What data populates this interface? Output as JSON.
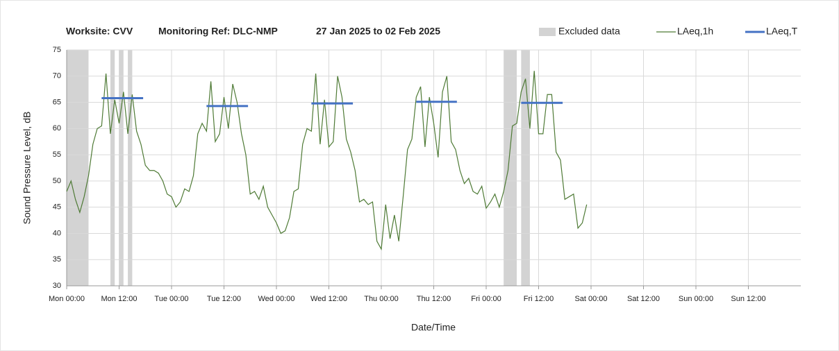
{
  "chart_data": {
    "type": "line",
    "title": [
      "Worksite: CVV",
      "Monitoring Ref: DLC-NMP",
      "27 Jan 2025 to 02 Feb 2025"
    ],
    "xlabel": "Date/Time",
    "ylabel": "Sound Pressure Level, dB",
    "xlim": [
      0,
      168
    ],
    "xticks": [
      {
        "value": 0,
        "label": "Mon 00:00"
      },
      {
        "value": 12,
        "label": "Mon 12:00"
      },
      {
        "value": 24,
        "label": "Tue 00:00"
      },
      {
        "value": 36,
        "label": "Tue 12:00"
      },
      {
        "value": 48,
        "label": "Wed 00:00"
      },
      {
        "value": 60,
        "label": "Wed 12:00"
      },
      {
        "value": 72,
        "label": "Thu 00:00"
      },
      {
        "value": 84,
        "label": "Thu 12:00"
      },
      {
        "value": 96,
        "label": "Fri 00:00"
      },
      {
        "value": 108,
        "label": "Fri 12:00"
      },
      {
        "value": 120,
        "label": "Sat 00:00"
      },
      {
        "value": 132,
        "label": "Sat 12:00"
      },
      {
        "value": 144,
        "label": "Sun 00:00"
      },
      {
        "value": 156,
        "label": "Sun 12:00"
      }
    ],
    "ylim": [
      30,
      75
    ],
    "yticks": [
      30,
      35,
      40,
      45,
      50,
      55,
      60,
      65,
      70,
      75
    ],
    "grid": true,
    "excluded": {
      "name": "Excluded data",
      "color": "#d3d3d3",
      "ranges": [
        [
          0,
          5
        ],
        [
          10,
          11
        ],
        [
          12,
          13
        ],
        [
          14,
          15
        ],
        [
          100,
          103
        ],
        [
          104,
          106
        ]
      ]
    },
    "series": [
      {
        "name": "LAeq,1h",
        "color": "#4e7a35",
        "x": [
          0,
          1,
          2,
          3,
          4,
          5,
          6,
          7,
          8,
          9,
          10,
          11,
          12,
          13,
          14,
          15,
          16,
          17,
          18,
          19,
          20,
          21,
          22,
          23,
          24,
          25,
          26,
          27,
          28,
          29,
          30,
          31,
          32,
          33,
          34,
          35,
          36,
          37,
          38,
          39,
          40,
          41,
          42,
          43,
          44,
          45,
          46,
          47,
          48,
          49,
          50,
          51,
          52,
          53,
          54,
          55,
          56,
          57,
          58,
          59,
          60,
          61,
          62,
          63,
          64,
          65,
          66,
          67,
          68,
          69,
          70,
          71,
          72,
          73,
          74,
          75,
          76,
          77,
          78,
          79,
          80,
          81,
          82,
          83,
          84,
          85,
          86,
          87,
          88,
          89,
          90,
          91,
          92,
          93,
          94,
          95,
          96,
          97,
          98,
          99,
          100,
          101,
          102,
          103,
          104,
          105,
          106,
          107,
          108,
          109,
          110,
          111,
          112,
          113,
          114,
          115,
          116,
          117,
          118,
          119
        ],
        "values": [
          48,
          50,
          46.5,
          44,
          47,
          51,
          57,
          60,
          60.5,
          70.5,
          59,
          65.5,
          61,
          67,
          59,
          66.5,
          59.5,
          57,
          53,
          52,
          52,
          51.5,
          50,
          47.5,
          47,
          45,
          46,
          48.5,
          48,
          51,
          59,
          61,
          59.5,
          69,
          57.5,
          59,
          66,
          60,
          68.5,
          65,
          59,
          55,
          47.5,
          48,
          46.5,
          49,
          45,
          43.5,
          42,
          40,
          40.5,
          43,
          48,
          48.5,
          57,
          60,
          59.5,
          70.5,
          57,
          65.5,
          56.5,
          57.5,
          70,
          66,
          58,
          55.5,
          52,
          46,
          46.5,
          45.5,
          46,
          38.5,
          37,
          45.5,
          39,
          43.5,
          38.5,
          47,
          56,
          58,
          66,
          68,
          56.5,
          66,
          61,
          54.5,
          67,
          70,
          57.5,
          56,
          52,
          49.5,
          50.5,
          48,
          47.5,
          49,
          44.8,
          46,
          47.5,
          45,
          48,
          52,
          60.5,
          61,
          67,
          69.5,
          60,
          71,
          59,
          59,
          66.5,
          66.5,
          55.5,
          54,
          46.5,
          47,
          47.5,
          41,
          42,
          45.5
        ]
      },
      {
        "name": "LAeq,T",
        "color": "#4472c4",
        "segments": [
          {
            "start": 8,
            "end": 17.5,
            "value": 65.8
          },
          {
            "start": 32,
            "end": 41.5,
            "value": 64.3
          },
          {
            "start": 56,
            "end": 65.5,
            "value": 64.8
          },
          {
            "start": 80,
            "end": 89.3,
            "value": 65.1
          },
          {
            "start": 104,
            "end": 113.5,
            "value": 64.9
          }
        ]
      }
    ]
  }
}
